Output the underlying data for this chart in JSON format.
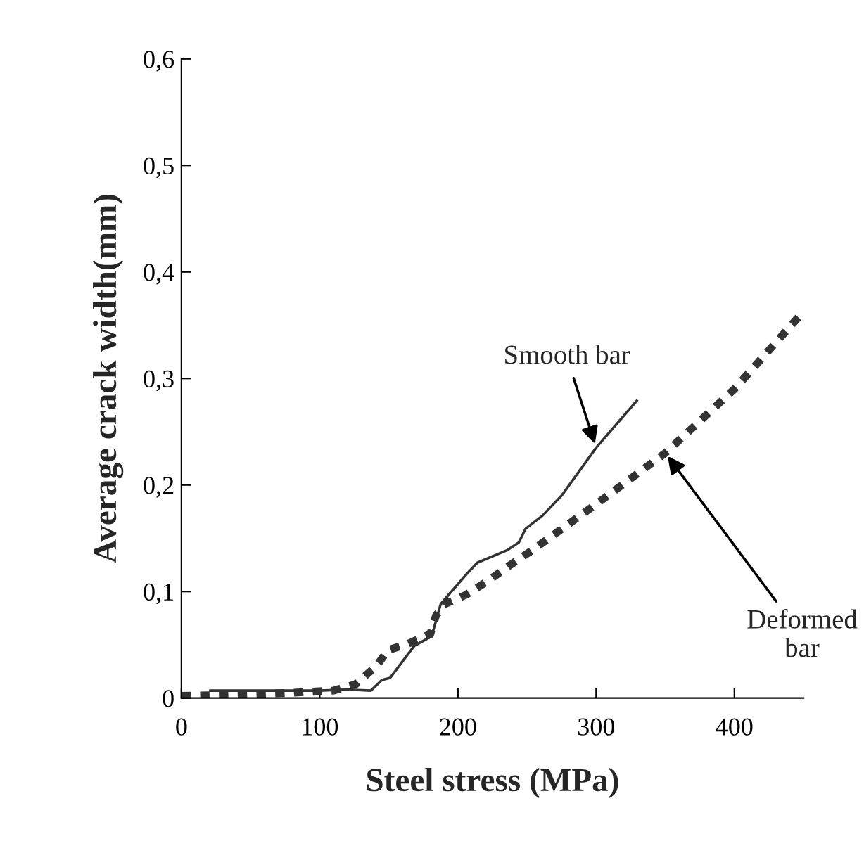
{
  "chart_data": {
    "type": "line",
    "xlabel": "Steel stress (MPa)",
    "ylabel": "Average crack width(mm)",
    "xlim": [
      0,
      450
    ],
    "ylim": [
      0,
      0.6
    ],
    "xticks": [
      0,
      100,
      200,
      300,
      400
    ],
    "yticks": [
      0,
      {
        "value": 0.1,
        "label": "0,1"
      },
      {
        "value": 0.2,
        "label": "0,2"
      },
      {
        "value": 0.3,
        "label": "0,3"
      },
      {
        "value": 0.4,
        "label": "0,4"
      },
      {
        "value": 0.5,
        "label": "0,5"
      },
      {
        "value": 0.6,
        "label": "0,6"
      }
    ],
    "grid": false,
    "legend": false,
    "marker": "none",
    "series": [
      {
        "color": "#333333",
        "line_style": "solid",
        "x": [
          20,
          60,
          100,
          120,
          137,
          145,
          151,
          162,
          168.5,
          181,
          187.5,
          192,
          206,
          214,
          236,
          244,
          249,
          261,
          275,
          300,
          330
        ],
        "values": [
          0.007,
          0.007,
          0.007,
          0.008,
          0.007,
          0.017,
          0.019,
          0.038,
          0.049,
          0.058,
          0.088,
          0.095,
          0.116,
          0.127,
          0.139,
          0.146,
          0.159,
          0.171,
          0.19,
          0.235,
          0.28
        ]
      },
      {
        "color": "#333333",
        "line_style": "dashed",
        "x": [
          0,
          40,
          80,
          110,
          126,
          141,
          149.5,
          164,
          180,
          184,
          190,
          206,
          223,
          238,
          254,
          300,
          350,
          400,
          448
        ],
        "values": [
          0.002,
          0.003,
          0.005,
          0.007,
          0.013,
          0.03,
          0.045,
          0.051,
          0.06,
          0.077,
          0.088,
          0.097,
          0.111,
          0.125,
          0.139,
          0.182,
          0.23,
          0.29,
          0.36
        ]
      }
    ],
    "annotations": [
      {
        "text": "Smooth bar",
        "x": 300,
        "y": 0.235
      },
      {
        "text": "Deformed\nbar",
        "x": 350,
        "y": 0.23
      }
    ]
  }
}
